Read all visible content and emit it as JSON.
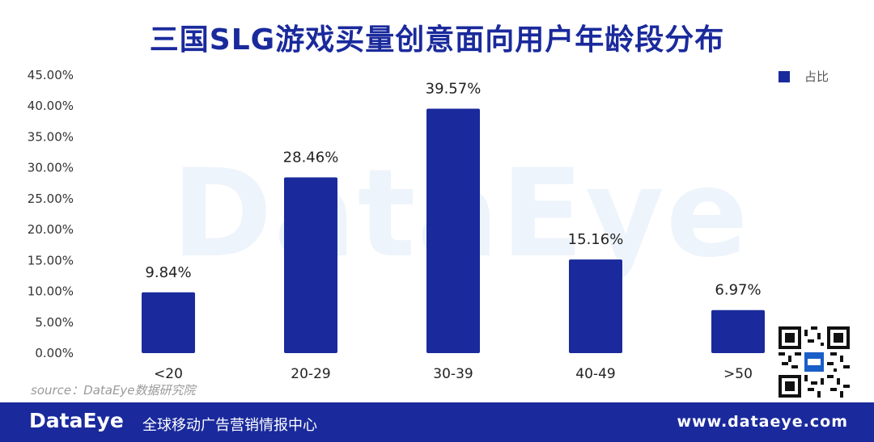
{
  "colors": {
    "bar": "#1a2a9c",
    "title": "#1a2a9c",
    "footer_bg": "#1a2a9c",
    "watermark": "#eef4fb"
  },
  "watermark_text": "DataEye",
  "source": "source：DataEye数据研究院",
  "footer": {
    "brand": "DataEye",
    "slogan": "全球移动广告营销情报中心",
    "url": "www.dataeye.com"
  },
  "chart_data": {
    "type": "bar",
    "title": "三国SLG游戏买量创意面向用户年龄段分布",
    "categories": [
      "<20",
      "20-29",
      "30-39",
      "40-49",
      ">50"
    ],
    "series": [
      {
        "name": "占比",
        "values": [
          9.84,
          28.46,
          39.57,
          15.16,
          6.97
        ]
      }
    ],
    "data_labels": [
      "9.84%",
      "28.46%",
      "39.57%",
      "15.16%",
      "6.97%"
    ],
    "ylim": [
      0,
      45
    ],
    "yticks": [
      "0.00%",
      "5.00%",
      "10.00%",
      "15.00%",
      "20.00%",
      "25.00%",
      "30.00%",
      "35.00%",
      "40.00%",
      "45.00%"
    ],
    "xlabel": "",
    "ylabel": "",
    "grid": false,
    "legend": "top-right"
  }
}
